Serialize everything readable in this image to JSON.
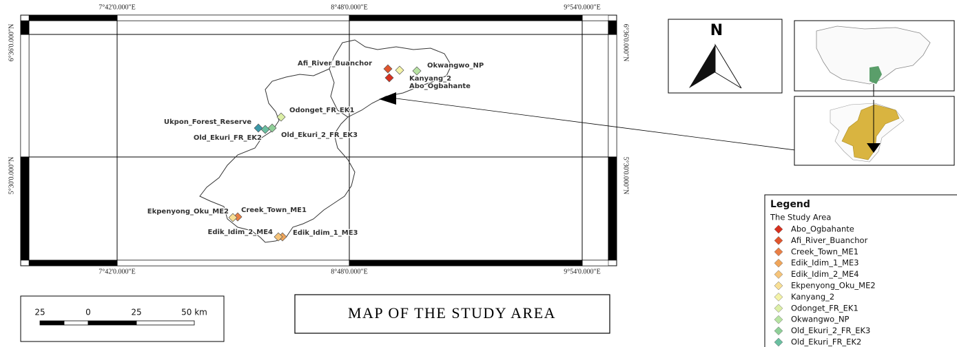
{
  "map": {
    "x_labels": [
      "7°42'0.000\"E",
      "8°48'0.000\"E",
      "9°54'0.000\"E"
    ],
    "y_labels": [
      "6°36'0.000\"N",
      "5°30'0.000\"N"
    ]
  },
  "north": "N",
  "title": "MAP OF THE STUDY AREA",
  "scale": {
    "ticks": [
      "25",
      "0",
      "25",
      "50 km"
    ]
  },
  "legend": {
    "title": "Legend",
    "group": "The Study Area",
    "items": [
      {
        "label": "Abo_Ogbahante",
        "color": "#d7301f"
      },
      {
        "label": "Afi_River_Buanchor",
        "color": "#e0552d"
      },
      {
        "label": "Creek_Town_ME1",
        "color": "#e97f45"
      },
      {
        "label": "Edik_Idim_1_ME3",
        "color": "#f0a55a"
      },
      {
        "label": "Edik_Idim_2_ME4",
        "color": "#f6c47a"
      },
      {
        "label": "Ekpenyong_Oku_ME2",
        "color": "#f8df95"
      },
      {
        "label": "Kanyang_2",
        "color": "#f4f3a8"
      },
      {
        "label": "Odonget_FR_EK1",
        "color": "#dcefa6"
      },
      {
        "label": "Okwangwo_NP",
        "color": "#b7e3a2"
      },
      {
        "label": "Old_Ekuri_2_FR_EK3",
        "color": "#8fcf98"
      },
      {
        "label": "Old_Ekuri_FR_EK2",
        "color": "#6abfa0"
      },
      {
        "label": "Ukpon_Forest_Reserve",
        "color": "#3c98a8"
      }
    ]
  }
}
